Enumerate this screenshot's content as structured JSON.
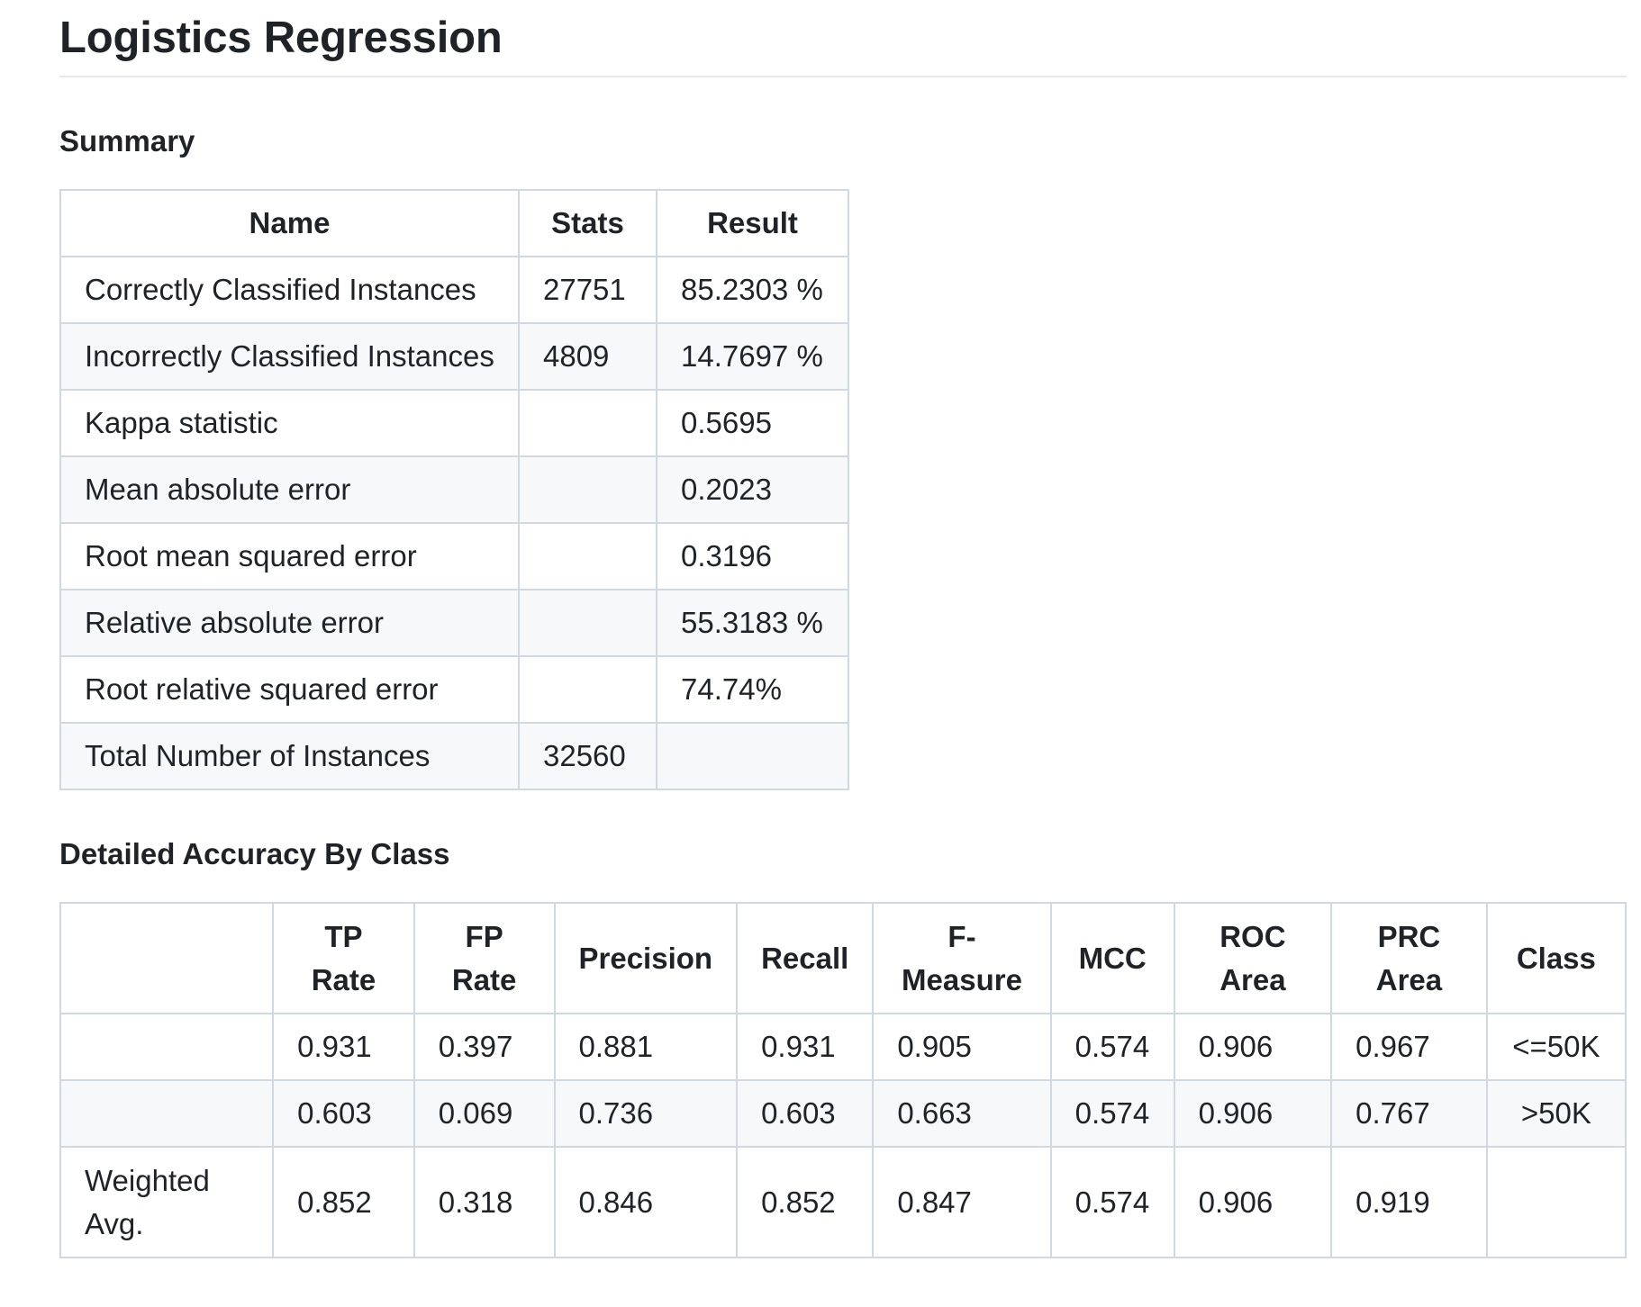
{
  "page_title": "Logistics Regression",
  "summary": {
    "heading": "Summary",
    "columns": [
      "Name",
      "Stats",
      "Result"
    ],
    "rows": [
      [
        "Correctly Classified Instances",
        "27751",
        "85.2303 %"
      ],
      [
        "Incorrectly Classified Instances",
        "4809",
        "14.7697 %"
      ],
      [
        "Kappa statistic",
        "",
        "0.5695"
      ],
      [
        "Mean absolute error",
        "",
        "0.2023"
      ],
      [
        "Root mean squared error",
        "",
        "0.3196"
      ],
      [
        "Relative absolute error",
        "",
        "55.3183 %"
      ],
      [
        "Root relative squared error",
        "",
        "74.74%"
      ],
      [
        "Total Number of Instances",
        "32560",
        ""
      ]
    ]
  },
  "detail": {
    "heading": "Detailed Accuracy By Class",
    "columns": [
      "",
      "TP Rate",
      "FP Rate",
      "Precision",
      "Recall",
      "F-Measure",
      "MCC",
      "ROC Area",
      "PRC Area",
      "Class"
    ],
    "rows": [
      [
        "",
        "0.931",
        "0.397",
        "0.881",
        "0.931",
        "0.905",
        "0.574",
        "0.906",
        "0.967",
        "<=50K"
      ],
      [
        "",
        "0.603",
        "0.069",
        "0.736",
        "0.603",
        "0.663",
        "0.574",
        "0.906",
        "0.767",
        ">50K"
      ],
      [
        "Weighted Avg.",
        "0.852",
        "0.318",
        "0.846",
        "0.852",
        "0.847",
        "0.574",
        "0.906",
        "0.919",
        ""
      ]
    ]
  }
}
